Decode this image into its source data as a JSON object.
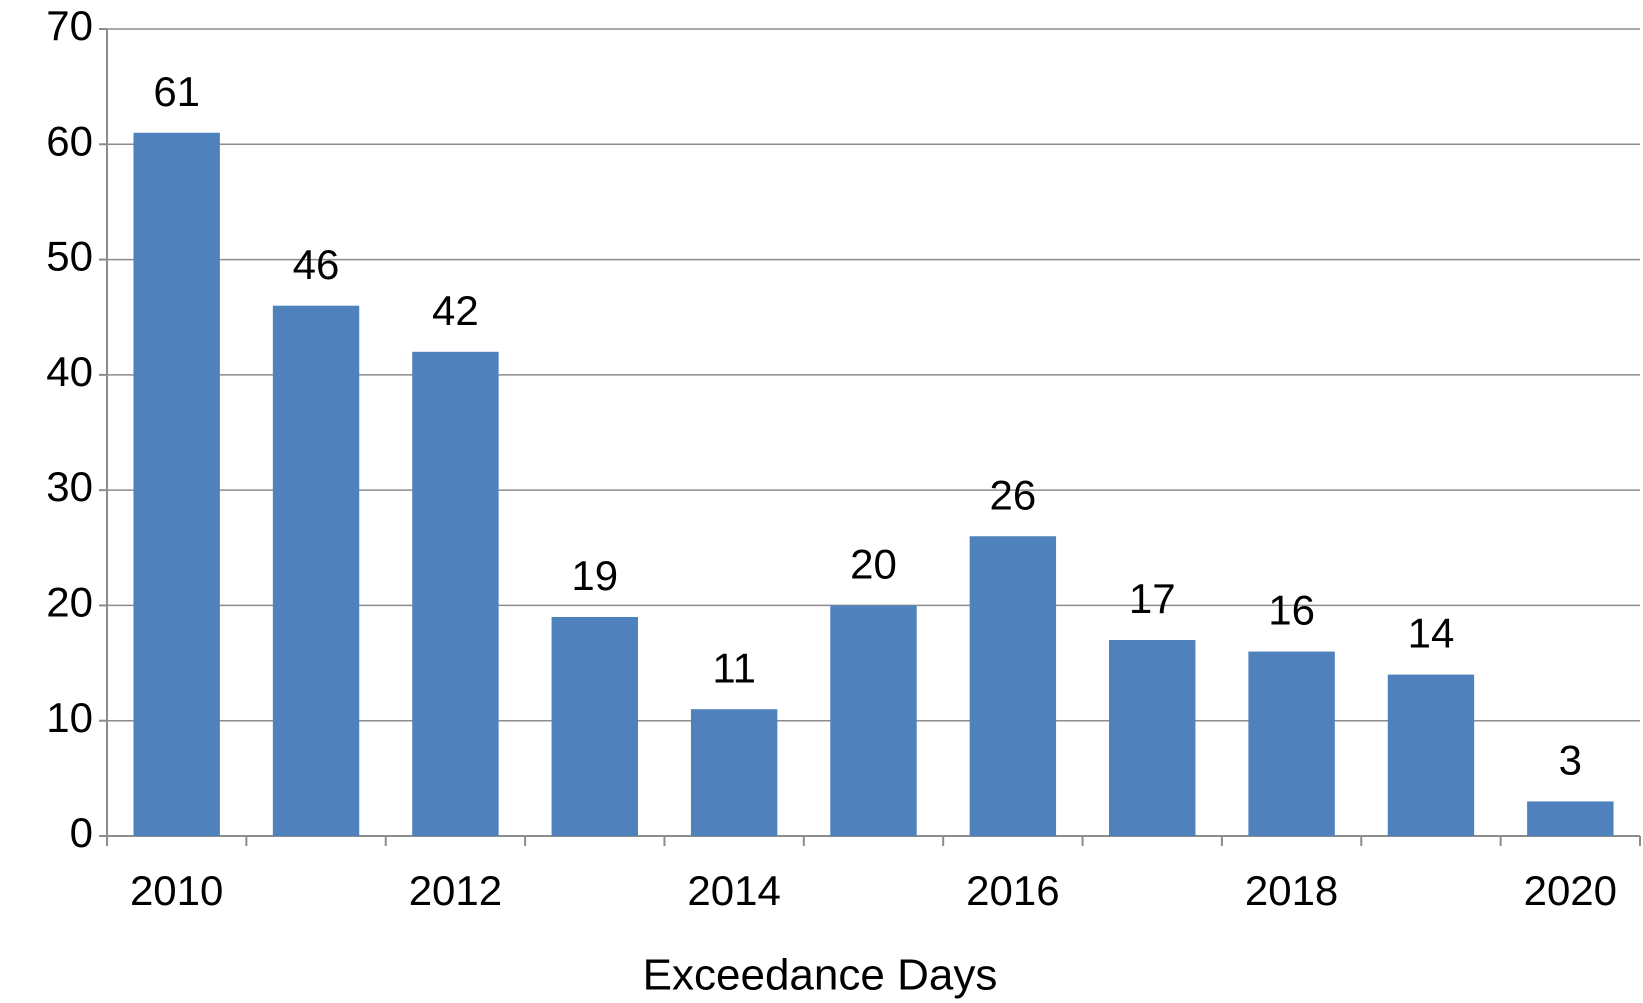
{
  "chart_data": {
    "type": "bar",
    "x_label": "Exceedance Days",
    "categories": [
      "2010",
      null,
      "2012",
      null,
      "2014",
      null,
      "2016",
      null,
      "2018",
      null,
      "2020"
    ],
    "values": [
      61,
      46,
      42,
      19,
      11,
      20,
      26,
      17,
      16,
      14,
      3
    ],
    "color": "#4f81bd",
    "ylim": [
      0,
      70
    ],
    "yticks": [
      0,
      10,
      20,
      30,
      40,
      50,
      60,
      70
    ],
    "grid": true
  }
}
